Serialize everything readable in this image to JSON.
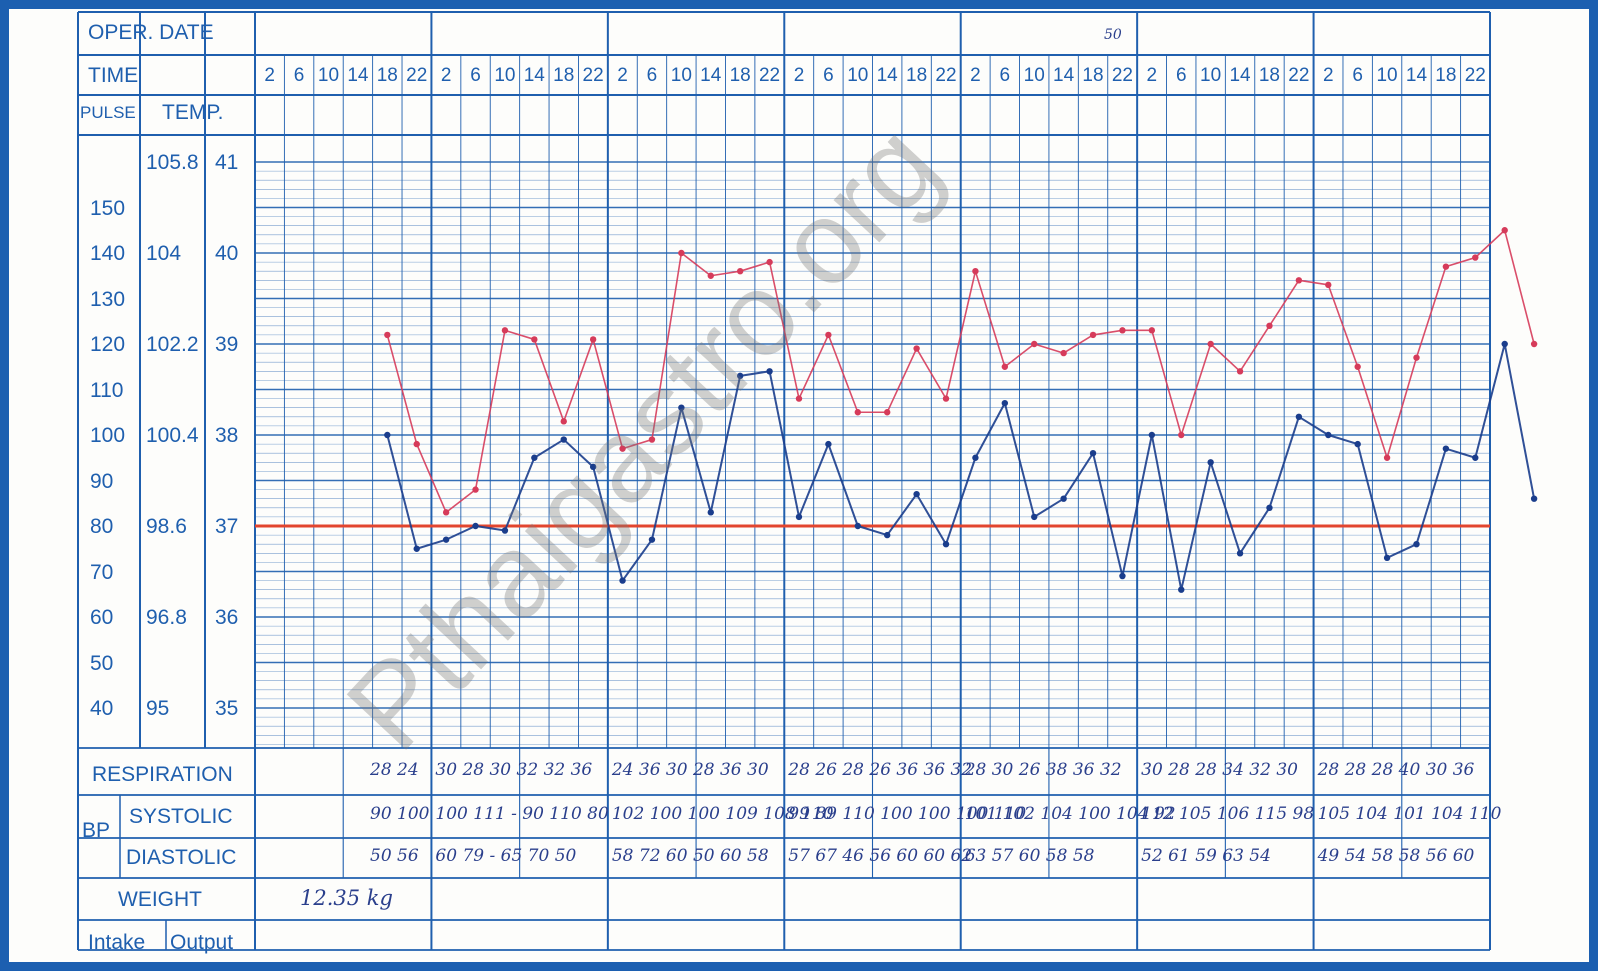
{
  "header": {
    "oper_date_label": "OPER. DATE",
    "time_label": "TIME",
    "pulse_label": "PULSE",
    "temp_label": "TEMP.",
    "date_mark": "50"
  },
  "time_ticks": [
    "2",
    "6",
    "10",
    "14",
    "18",
    "22"
  ],
  "scales": {
    "pulse": [
      "150",
      "140",
      "130",
      "120",
      "110",
      "100",
      "90",
      "80",
      "70",
      "60",
      "50",
      "40"
    ],
    "temp_f": [
      "105.8",
      "104",
      "102.2",
      "100.4",
      "98.6",
      "96.8",
      "95"
    ],
    "temp_c": [
      "41",
      "40",
      "39",
      "38",
      "37",
      "36",
      "35"
    ]
  },
  "rows": {
    "respiration_label": "RESPIRATION",
    "bp_label": "BP",
    "systolic_label": "SYSTOLIC",
    "diastolic_label": "DIASTOLIC",
    "weight_label": "WEIGHT",
    "intake_label": "Intake",
    "output_label": "Output"
  },
  "handwritten": {
    "weight": "12.35 kg",
    "respiration": [
      "28 24",
      "30 28 30 32 32 36",
      "24 36 30 28 36 30",
      "28 26 28 26 36 36 32",
      "28 30 26 38 36 32",
      "30 28 28 34 32 30",
      "28 28 28 40 30 36"
    ],
    "systolic": [
      "90 100",
      "100 111 - 90 110 80",
      "102 100 100 109 108 110",
      "99 89 110 100 100 100 110",
      "101 102 104 100 104 92",
      "112 105 106 115 98",
      "105 104 101 104 110"
    ],
    "diastolic": [
      "50 56",
      "60 79 - 65 70 50",
      "58 72 60 50 60 58",
      "57 67 46 56 60 60 62",
      "63 57 60 58 58",
      "52 61 59 63 54",
      "49 54 58 58 56 60"
    ]
  },
  "watermark": "Pthaigastro.org",
  "chart_data": {
    "type": "line",
    "time_slots_per_day": [
      "2",
      "6",
      "10",
      "14",
      "18",
      "22"
    ],
    "days": 7,
    "series": [
      {
        "color": "#d63b5a",
        "points": [
          [
            4,
            122
          ],
          [
            5,
            98
          ],
          [
            6,
            83
          ],
          [
            7,
            88
          ],
          [
            8,
            123
          ],
          [
            9,
            121
          ],
          [
            10,
            103
          ],
          [
            11,
            121
          ],
          [
            12,
            97
          ],
          [
            13,
            99
          ],
          [
            14,
            140
          ],
          [
            15,
            135
          ],
          [
            16,
            136
          ],
          [
            17,
            138
          ],
          [
            18,
            108
          ],
          [
            19,
            122
          ],
          [
            20,
            105
          ],
          [
            21,
            105
          ],
          [
            22,
            119
          ],
          [
            23,
            108
          ],
          [
            24,
            136
          ],
          [
            25,
            115
          ],
          [
            26,
            120
          ],
          [
            27,
            118
          ],
          [
            28,
            122
          ],
          [
            29,
            123
          ],
          [
            30,
            123
          ],
          [
            31,
            100
          ],
          [
            32,
            120
          ],
          [
            33,
            114
          ],
          [
            34,
            124
          ],
          [
            35,
            134
          ],
          [
            36,
            133
          ],
          [
            37,
            115
          ],
          [
            38,
            95
          ],
          [
            39,
            117
          ],
          [
            40,
            137
          ],
          [
            41,
            139
          ],
          [
            42,
            145
          ],
          [
            43,
            120
          ]
        ]
      },
      {
        "color": "#1a3d8c",
        "points": [
          [
            4,
            100
          ],
          [
            5,
            75
          ],
          [
            6,
            77
          ],
          [
            7,
            80
          ],
          [
            8,
            79
          ],
          [
            9,
            95
          ],
          [
            10,
            99
          ],
          [
            11,
            93
          ],
          [
            12,
            68
          ],
          [
            13,
            77
          ],
          [
            14,
            106
          ],
          [
            15,
            83
          ],
          [
            16,
            113
          ],
          [
            17,
            114
          ],
          [
            18,
            82
          ],
          [
            19,
            98
          ],
          [
            20,
            80
          ],
          [
            21,
            78
          ],
          [
            22,
            87
          ],
          [
            23,
            76
          ],
          [
            24,
            95
          ],
          [
            25,
            107
          ],
          [
            26,
            82
          ],
          [
            27,
            86
          ],
          [
            28,
            96
          ],
          [
            29,
            69
          ],
          [
            30,
            100
          ],
          [
            31,
            66
          ],
          [
            32,
            94
          ],
          [
            33,
            74
          ],
          [
            34,
            84
          ],
          [
            35,
            104
          ],
          [
            36,
            100
          ],
          [
            37,
            98
          ],
          [
            38,
            73
          ],
          [
            39,
            76
          ],
          [
            40,
            97
          ],
          [
            41,
            95
          ],
          [
            42,
            120
          ],
          [
            43,
            86
          ]
        ]
      }
    ],
    "reference_line": {
      "temp_c": 37
    }
  }
}
